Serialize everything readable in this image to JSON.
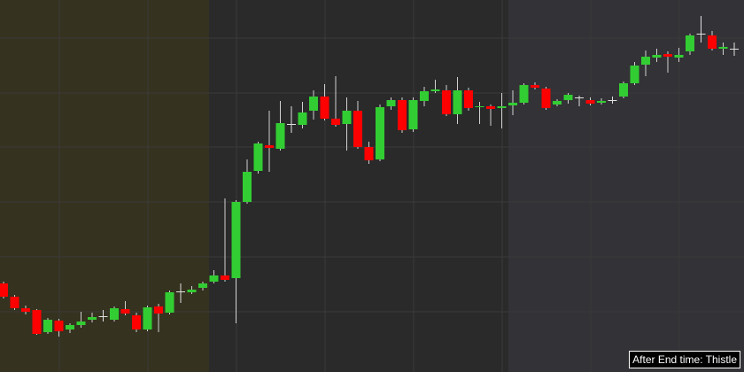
{
  "chart_data": {
    "type": "candlestick",
    "annotation": "After End time: Thistle",
    "ylim": [
      0,
      420
    ],
    "up_color": "#32cd32",
    "down_color": "#ff0000",
    "doji_color": "#e0e0e0",
    "open": [
      100,
      85,
      72,
      70,
      45,
      58,
      48,
      53,
      59,
      63,
      59,
      71,
      64,
      48,
      74,
      67,
      91,
      90,
      95,
      102,
      109,
      106,
      192,
      227,
      256,
      252,
      280,
      279,
      295,
      311,
      286,
      280,
      295,
      254,
      240,
      300,
      307,
      274,
      306,
      317,
      318,
      291,
      318,
      299,
      300,
      298,
      301,
      304,
      324,
      320,
      302,
      307,
      310,
      307,
      304,
      307,
      311,
      326,
      347,
      355,
      359,
      355,
      362,
      382,
      380,
      365,
      365
    ],
    "high": [
      102,
      87,
      75,
      71,
      61,
      60,
      55,
      68,
      67,
      70,
      74,
      80,
      67,
      75,
      77,
      92,
      100,
      97,
      102,
      115,
      196,
      194,
      240,
      260,
      295,
      306,
      300,
      305,
      318,
      325,
      334,
      310,
      306,
      260,
      302,
      310,
      310,
      310,
      322,
      330,
      324,
      333,
      321,
      305,
      302,
      315,
      318,
      326,
      327,
      322,
      308,
      315,
      312,
      310,
      309,
      311,
      328,
      350,
      363,
      365,
      362,
      366,
      382,
      402,
      385,
      372,
      372
    ],
    "low": [
      83,
      70,
      65,
      42,
      43,
      40,
      44,
      50,
      56,
      57,
      57,
      64,
      45,
      46,
      45,
      65,
      78,
      88,
      92,
      100,
      102,
      55,
      190,
      224,
      226,
      250,
      270,
      275,
      285,
      284,
      277,
      250,
      252,
      235,
      238,
      296,
      270,
      271,
      300,
      315,
      289,
      280,
      295,
      280,
      278,
      275,
      290,
      302,
      319,
      296,
      300,
      303,
      300,
      301,
      302,
      303,
      309,
      324,
      334,
      350,
      338,
      350,
      358,
      372,
      363,
      358,
      357
    ],
    "close": [
      85,
      72,
      68,
      43,
      59,
      46,
      53,
      57,
      62,
      63,
      72,
      66,
      48,
      73,
      66,
      90,
      91,
      93,
      100,
      109,
      104,
      192,
      226,
      258,
      253,
      281,
      280,
      293,
      311,
      286,
      279,
      295,
      254,
      239,
      299,
      307,
      273,
      307,
      317,
      319,
      291,
      318,
      298,
      300,
      297,
      300,
      304,
      324,
      321,
      298,
      306,
      313,
      310,
      303,
      306,
      307,
      326,
      346,
      356,
      358,
      356,
      358,
      380,
      382,
      365,
      367,
      365
    ]
  }
}
